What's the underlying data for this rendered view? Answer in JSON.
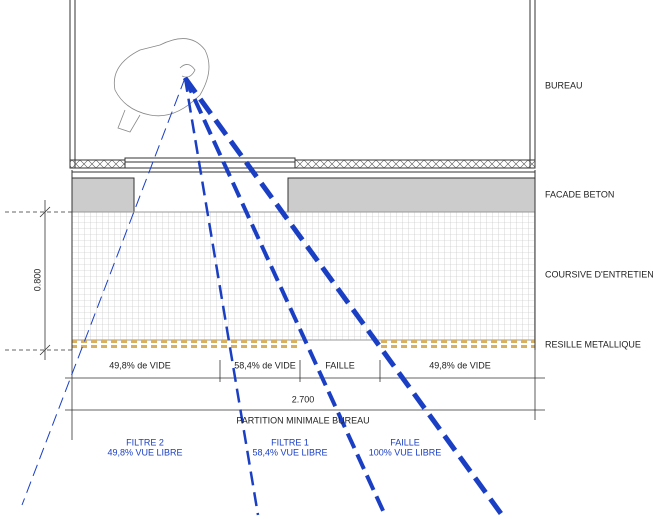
{
  "labels": {
    "bureau": "BUREAU",
    "facade": "FACADE BETON",
    "coursive": "COURSIVE D'ENTRETIEN",
    "resille": "RESILLE METALLIQUE"
  },
  "dimensions": {
    "height": "0.800",
    "width": "2.700",
    "partition": "PARTITION MINIMALE BUREAU"
  },
  "segments": [
    "49,8% de VIDE",
    "58,4% de VIDE",
    "FAILLE",
    "49,8% de VIDE"
  ],
  "filters": [
    {
      "name": "FILTRE 2",
      "view": "49,8% VUE LIBRE"
    },
    {
      "name": "FILTRE 1",
      "view": "58,4% VUE LIBRE"
    },
    {
      "name": "FAILLE",
      "view": "100% VUE LIBRE"
    }
  ]
}
